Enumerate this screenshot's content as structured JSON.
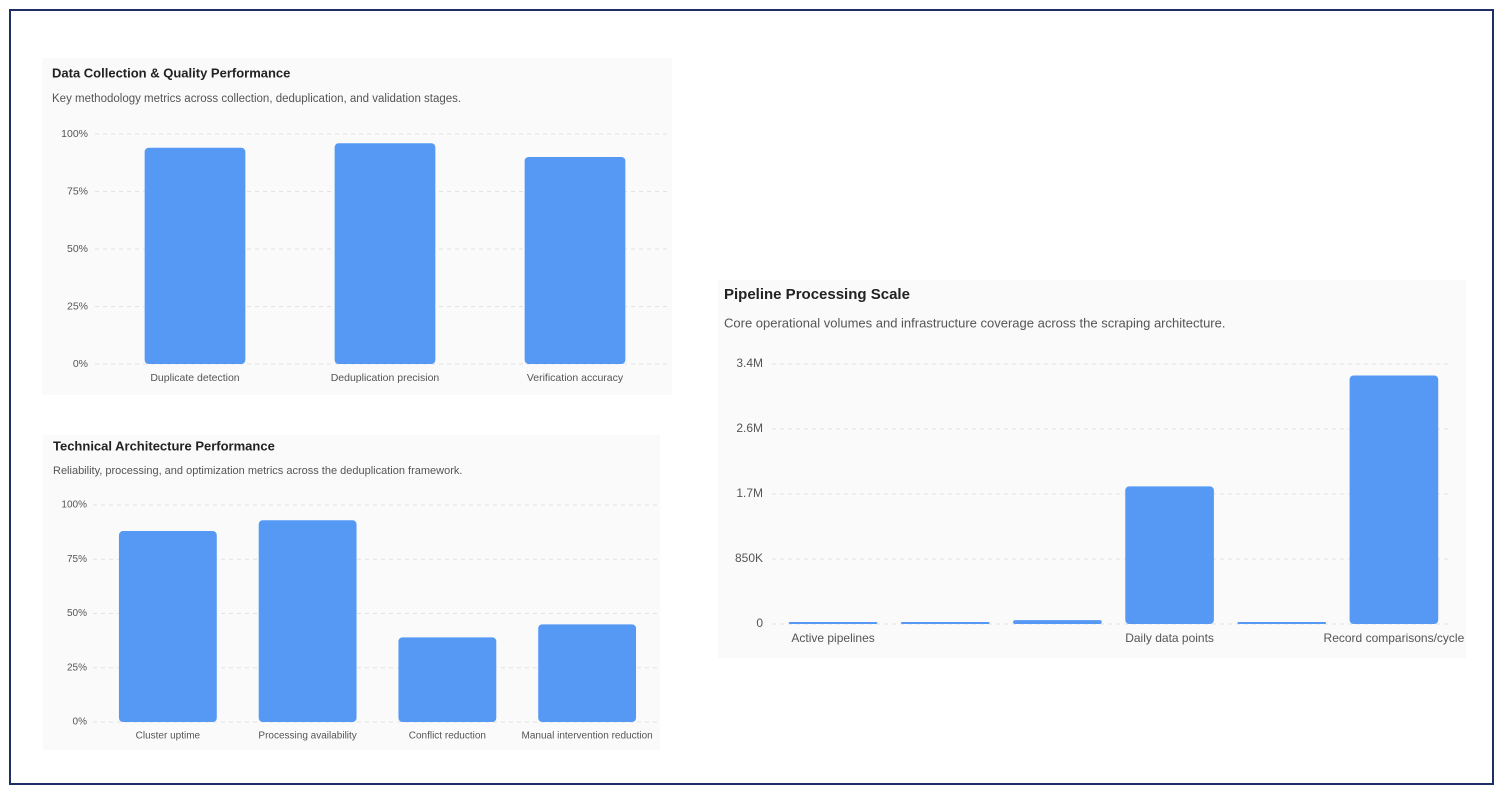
{
  "chart_data": [
    {
      "type": "bar",
      "title": "Data Collection & Quality Performance",
      "subtitle": "Key methodology metrics across collection, deduplication, and validation stages.",
      "categories": [
        "Duplicate detection",
        "Deduplication precision",
        "Verification accuracy"
      ],
      "values": [
        94,
        96,
        90
      ],
      "color": "#5599f5",
      "ylim": [
        0,
        100
      ],
      "yticks": [
        {
          "value": 0,
          "label": "0%"
        },
        {
          "value": 25,
          "label": "25%"
        },
        {
          "value": 50,
          "label": "50%"
        },
        {
          "value": 75,
          "label": "75%"
        },
        {
          "value": 100,
          "label": "100%"
        }
      ],
      "grid": true
    },
    {
      "type": "bar",
      "title": "Technical Architecture Performance",
      "subtitle": "Reliability, processing, and optimization metrics across the deduplication framework.",
      "categories": [
        "Cluster uptime",
        "Processing availability",
        "Conflict reduction",
        "Manual intervention reduction"
      ],
      "values": [
        88,
        93,
        39,
        45
      ],
      "color": "#5599f5",
      "ylim": [
        0,
        100
      ],
      "yticks": [
        {
          "value": 0,
          "label": "0%"
        },
        {
          "value": 25,
          "label": "25%"
        },
        {
          "value": 50,
          "label": "50%"
        },
        {
          "value": 75,
          "label": "75%"
        },
        {
          "value": 100,
          "label": "100%"
        }
      ],
      "grid": true
    },
    {
      "type": "bar",
      "title": "Pipeline Processing Scale",
      "subtitle": "Core operational volumes and infrastructure coverage across the scraping architecture.",
      "categories": [
        "Active pipelines",
        null,
        null,
        "Daily data points",
        null,
        "Record comparisons/cycle"
      ],
      "values": [
        12,
        500,
        50000,
        1800000,
        1000,
        3250000
      ],
      "color": "#5599f5",
      "ylim": [
        0,
        3400000
      ],
      "yticks": [
        0,
        {
          "value": 850000,
          "label": "850K"
        },
        {
          "value": 1700000,
          "label": "1.7M"
        },
        {
          "value": 2550000,
          "label": "2.6M"
        },
        {
          "value": 3400000,
          "label": "3.4M"
        }
      ],
      "grid": true
    }
  ]
}
